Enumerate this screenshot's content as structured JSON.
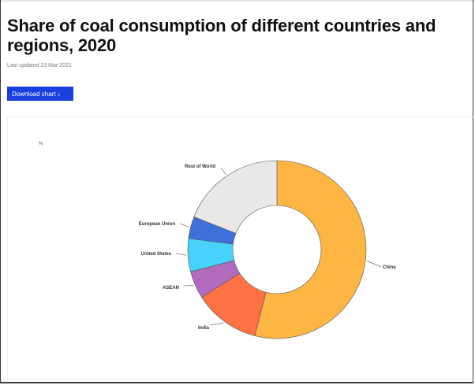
{
  "header": {
    "title": "Share of coal consumption of different countries and regions, 2020",
    "last_updated": "Last updated 23 Mar 2021",
    "download_label": "Download chart ↓"
  },
  "chart_data": {
    "type": "pie",
    "variant": "donut",
    "unit": "%",
    "categories": [
      "China",
      "India",
      "ASEAN",
      "United States",
      "European Union",
      "Rest of World"
    ],
    "values": [
      54,
      12,
      5,
      6,
      4,
      19
    ],
    "colors": [
      "#fdb643",
      "#fc7245",
      "#b06bbd",
      "#48d1fb",
      "#3d70d8",
      "#e8e8e8"
    ]
  }
}
